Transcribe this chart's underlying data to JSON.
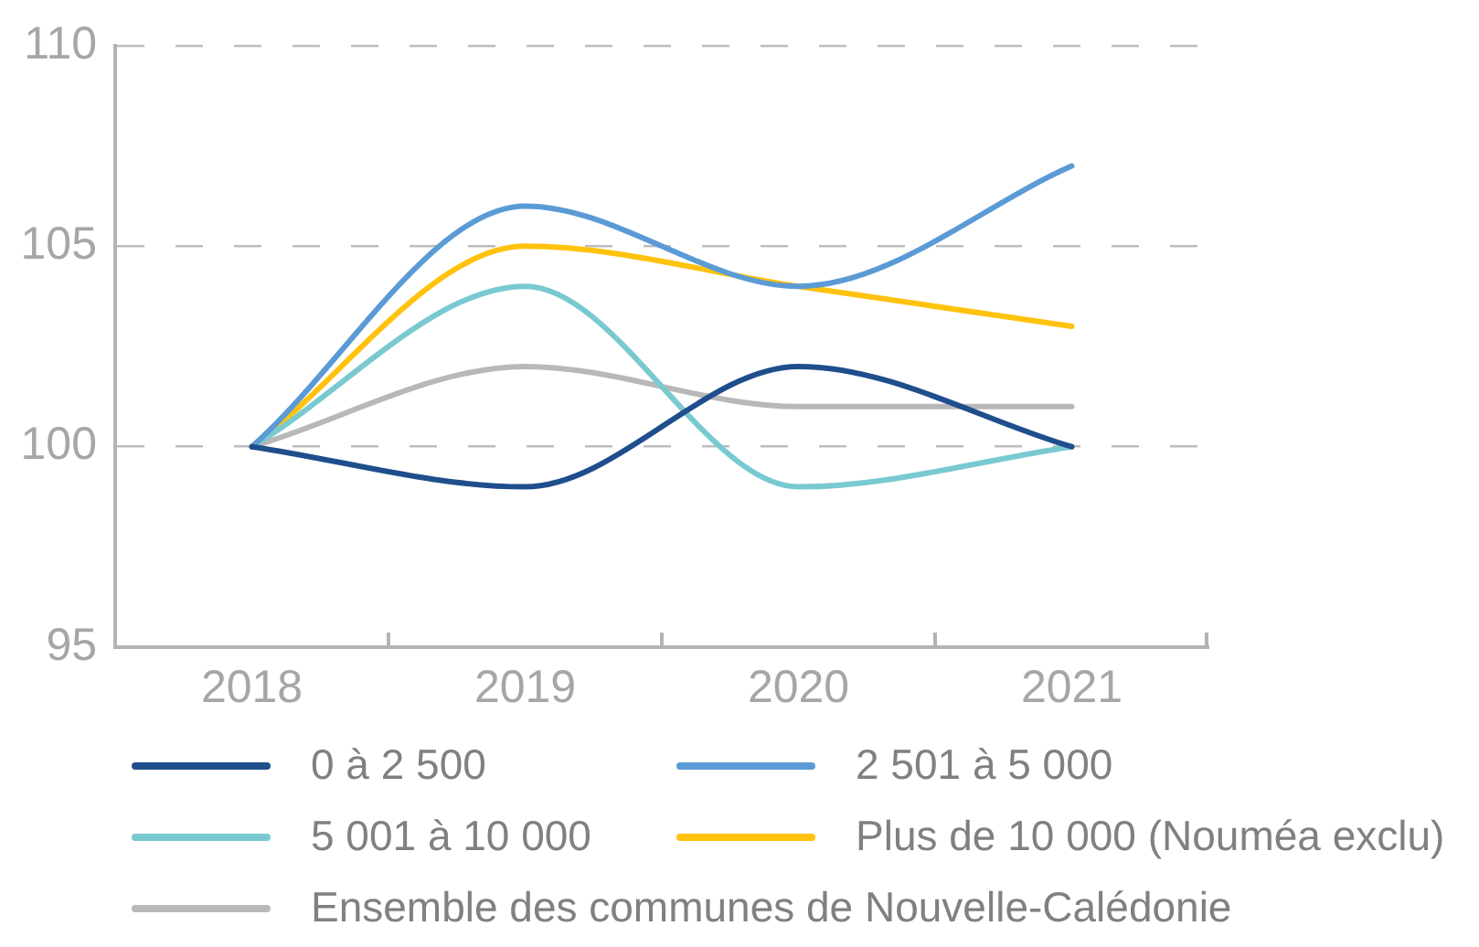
{
  "chart_data": {
    "type": "line",
    "categories": [
      "2018",
      "2019",
      "2020",
      "2021"
    ],
    "series": [
      {
        "name": "0 à 2 500",
        "color": "#1f4e8c",
        "values": [
          100,
          99,
          102,
          100
        ]
      },
      {
        "name": "2 501 à 5 000",
        "color": "#5b9bd5",
        "values": [
          100,
          106,
          104,
          107
        ]
      },
      {
        "name": "5 001 à 10 000",
        "color": "#79c9d1",
        "values": [
          100,
          104,
          99,
          100
        ]
      },
      {
        "name": "Plus de 10 000 (Nouméa exclu)",
        "color": "#ffc20e",
        "values": [
          100,
          105,
          104,
          103
        ]
      },
      {
        "name": "Ensemble des communes de Nouvelle-Calédonie",
        "color": "#b8b8b8",
        "values": [
          100,
          102,
          101,
          101
        ]
      }
    ],
    "ylim": [
      95,
      110
    ],
    "yticks": [
      95,
      100,
      105,
      110
    ],
    "grid": "y",
    "legend": "bottom",
    "marker": "none"
  }
}
